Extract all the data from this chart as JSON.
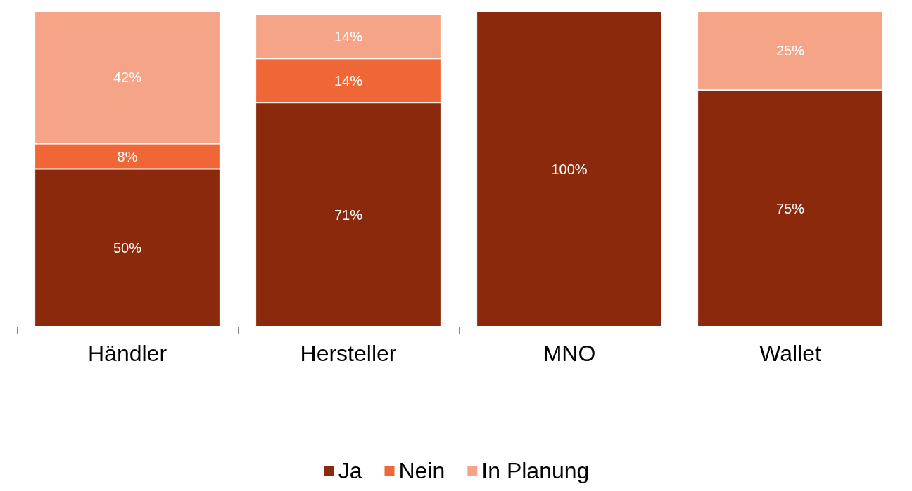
{
  "chart_data": {
    "type": "bar",
    "stacked": true,
    "categories": [
      "Händler",
      "Hersteller",
      "MNO",
      "Wallet"
    ],
    "series": [
      {
        "name": "Ja",
        "color": "#8b290c",
        "values": [
          50,
          71,
          100,
          75
        ],
        "value_labels": [
          "50%",
          "71%",
          "100%",
          "75%"
        ]
      },
      {
        "name": "Nein",
        "color": "#f06737",
        "values": [
          8,
          14,
          null,
          null
        ],
        "value_labels": [
          "8%",
          "14%",
          null,
          null
        ]
      },
      {
        "name": "In Planung",
        "color": "#f5a487",
        "values": [
          42,
          14,
          null,
          25
        ],
        "value_labels": [
          "42%",
          "14%",
          null,
          "25%"
        ]
      }
    ],
    "legend": "bottom"
  }
}
